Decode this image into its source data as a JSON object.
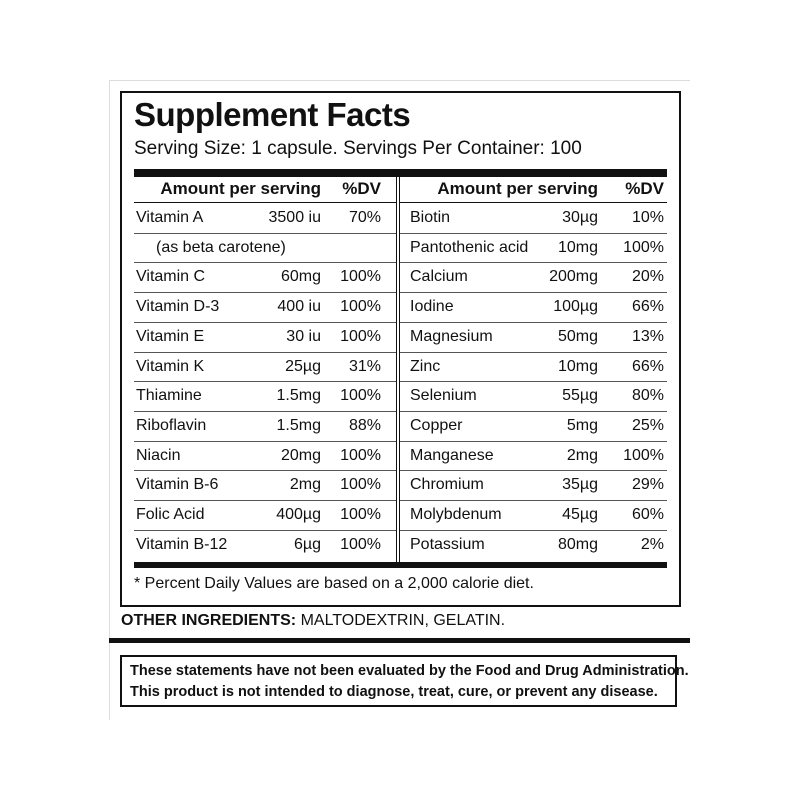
{
  "label": {
    "title": "Supplement Facts",
    "serving": "Serving Size: 1 capsule. Servings Per Container: 100",
    "headers": {
      "amount": "Amount per serving",
      "dv": "%DV"
    },
    "left_rows": [
      {
        "name": "Vitamin A",
        "amount": "3500 iu",
        "dv": "70%"
      },
      {
        "name": "(as beta carotene)"
      },
      {
        "name": "Vitamin C",
        "amount": "60mg",
        "dv": "100%"
      },
      {
        "name": "Vitamin D-3",
        "amount": "400 iu",
        "dv": "100%"
      },
      {
        "name": "Vitamin E",
        "amount": "30 iu",
        "dv": "100%"
      },
      {
        "name": "Vitamin K",
        "amount": "25µg",
        "dv": "31%"
      },
      {
        "name": "Thiamine",
        "amount": "1.5mg",
        "dv": "100%"
      },
      {
        "name": "Riboflavin",
        "amount": "1.5mg",
        "dv": "88%"
      },
      {
        "name": "Niacin",
        "amount": "20mg",
        "dv": "100%"
      },
      {
        "name": "Vitamin B-6",
        "amount": "2mg",
        "dv": "100%"
      },
      {
        "name": "Folic Acid",
        "amount": "400µg",
        "dv": "100%"
      },
      {
        "name": "Vitamin B-12",
        "amount": "6µg",
        "dv": "100%"
      }
    ],
    "right_rows": [
      {
        "name": "Biotin",
        "amount": "30µg",
        "dv": "10%"
      },
      {
        "name": "Pantothenic acid",
        "amount": "10mg",
        "dv": "100%"
      },
      {
        "name": "Calcium",
        "amount": "200mg",
        "dv": "20%"
      },
      {
        "name": "Iodine",
        "amount": "100µg",
        "dv": "66%"
      },
      {
        "name": "Magnesium",
        "amount": "50mg",
        "dv": "13%"
      },
      {
        "name": "Zinc",
        "amount": "10mg",
        "dv": "66%"
      },
      {
        "name": "Selenium",
        "amount": "55µg",
        "dv": "80%"
      },
      {
        "name": "Copper",
        "amount": "5mg",
        "dv": "25%"
      },
      {
        "name": "Manganese",
        "amount": "2mg",
        "dv": "100%"
      },
      {
        "name": "Chromium",
        "amount": "35µg",
        "dv": "29%"
      },
      {
        "name": "Molybdenum",
        "amount": "45µg",
        "dv": "60%"
      },
      {
        "name": "Potassium",
        "amount": "80mg",
        "dv": "2%"
      }
    ],
    "footnote": "* Percent Daily Values are based on a 2,000 calorie diet.",
    "other_ingredients_label": "OTHER INGREDIENTS:",
    "other_ingredients": "MALTODEXTRIN, GELATIN.",
    "disclaimer": [
      "These statements have not been evaluated by the Food and Drug Administration.",
      "This product is not intended to diagnose, treat, cure, or prevent any disease."
    ]
  }
}
